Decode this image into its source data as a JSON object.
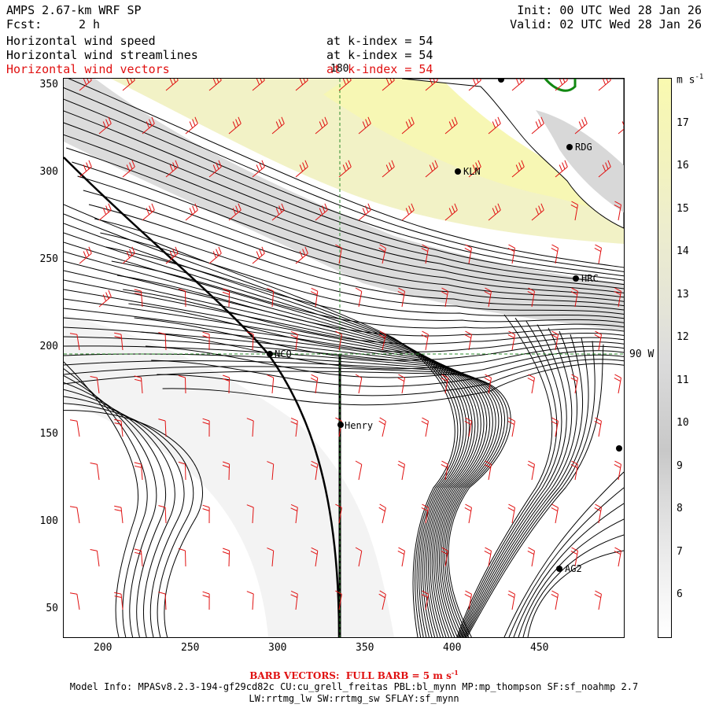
{
  "header": {
    "model": "AMPS 2.67-km WRF SP",
    "fcst_label": "Fcst:",
    "fcst_value": "2 h",
    "init": "Init: 00 UTC Wed 28 Jan 26",
    "valid": "Valid: 02 UTC Wed 28 Jan 26"
  },
  "fields": [
    {
      "name": "Horizontal wind speed",
      "level": "at k-index = 54"
    },
    {
      "name": "Horizontal wind streamlines",
      "level": "at k-index = 54"
    },
    {
      "name": "Horizontal wind vectors",
      "level": "at k-index = 54"
    }
  ],
  "colorbar": {
    "unit": "m s",
    "unit_exp": "-1",
    "labels": [
      "17",
      "16",
      "15",
      "14",
      "13",
      "12",
      "11",
      "10",
      "9",
      "8",
      "7",
      "6"
    ],
    "colors": [
      "#fafab0",
      "#f5f5b8",
      "#f2f2c0",
      "#eeeecc",
      "#e9e9d2",
      "#e4e4d8",
      "#dcdcdc",
      "#d2d2d2",
      "#c8c8c8",
      "#dadada",
      "#e8e8e8",
      "#f4f4f4",
      "#ffffff"
    ]
  },
  "axes": {
    "x_ticks": [
      "200",
      "250",
      "300",
      "350",
      "400",
      "450"
    ],
    "y_ticks": [
      "350",
      "300",
      "250",
      "200",
      "150",
      "100",
      "50"
    ]
  },
  "map_labels": {
    "lon_180": "180",
    "lat_90w": "90 W"
  },
  "stations": [
    {
      "id": "KLN"
    },
    {
      "id": "RDG"
    },
    {
      "id": "HRC"
    },
    {
      "id": "NCO"
    },
    {
      "id": "Henry"
    },
    {
      "id": "AG2"
    },
    {
      "id": ""
    },
    {
      "id": ""
    }
  ],
  "footer": {
    "barb": "BARB VECTORS:  FULL BARB = 5 m s",
    "barb_exp": "-1",
    "line1": "Model Info: MPASv8.2.3-194-gf29cd82c CU:cu_grell_freitas PBL:bl_mynn MP:mp_thompson SF:sf_noahmp 2.7",
    "line2": "LW:rrtmg_lw SW:rrtmg_sw SFLAY:sf_mynn"
  }
}
